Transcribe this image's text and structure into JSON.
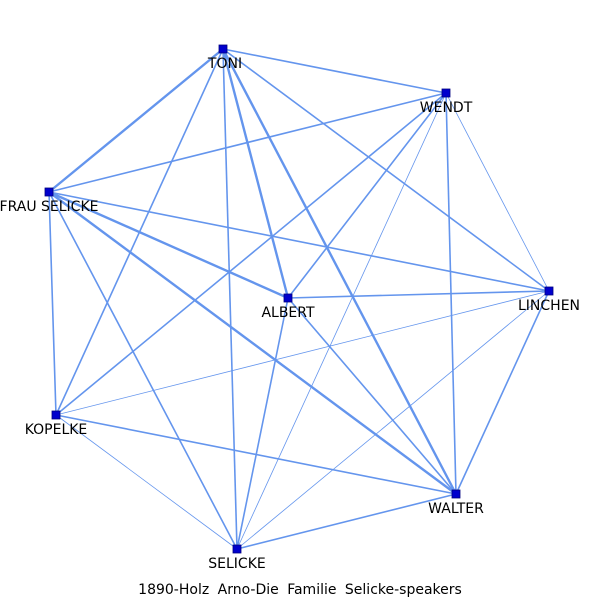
{
  "caption": "1890-Holz Arno-Die Familie Selicke-speakers",
  "colors": {
    "edge": "#6495ED",
    "node": "#0000CD"
  },
  "nodes": [
    {
      "id": "TONI",
      "label": "TONI"
    },
    {
      "id": "WENDT",
      "label": "WENDT"
    },
    {
      "id": "FRAU_SELICKE",
      "label": "FRAU SELICKE"
    },
    {
      "id": "ALBERT",
      "label": "ALBERT"
    },
    {
      "id": "LINCHEN",
      "label": "LINCHEN"
    },
    {
      "id": "KOPELKE",
      "label": "KOPELKE"
    },
    {
      "id": "WALTER",
      "label": "WALTER"
    },
    {
      "id": "SELICKE",
      "label": "SELICKE"
    }
  ],
  "edges": [
    {
      "source": "TONI",
      "target": "WENDT",
      "weight": 2
    },
    {
      "source": "TONI",
      "target": "FRAU_SELICKE",
      "weight": 3
    },
    {
      "source": "TONI",
      "target": "ALBERT",
      "weight": 3
    },
    {
      "source": "TONI",
      "target": "LINCHEN",
      "weight": 2
    },
    {
      "source": "TONI",
      "target": "KOPELKE",
      "weight": 2
    },
    {
      "source": "TONI",
      "target": "WALTER",
      "weight": 3
    },
    {
      "source": "TONI",
      "target": "SELICKE",
      "weight": 2
    },
    {
      "source": "WENDT",
      "target": "FRAU_SELICKE",
      "weight": 2
    },
    {
      "source": "WENDT",
      "target": "ALBERT",
      "weight": 2
    },
    {
      "source": "WENDT",
      "target": "LINCHEN",
      "weight": 1
    },
    {
      "source": "WENDT",
      "target": "KOPELKE",
      "weight": 2
    },
    {
      "source": "WENDT",
      "target": "WALTER",
      "weight": 2
    },
    {
      "source": "WENDT",
      "target": "SELICKE",
      "weight": 1
    },
    {
      "source": "FRAU_SELICKE",
      "target": "ALBERT",
      "weight": 3
    },
    {
      "source": "FRAU_SELICKE",
      "target": "LINCHEN",
      "weight": 2
    },
    {
      "source": "FRAU_SELICKE",
      "target": "KOPELKE",
      "weight": 2
    },
    {
      "source": "FRAU_SELICKE",
      "target": "WALTER",
      "weight": 3
    },
    {
      "source": "FRAU_SELICKE",
      "target": "SELICKE",
      "weight": 2
    },
    {
      "source": "ALBERT",
      "target": "LINCHEN",
      "weight": 2
    },
    {
      "source": "ALBERT",
      "target": "WALTER",
      "weight": 2
    },
    {
      "source": "ALBERT",
      "target": "SELICKE",
      "weight": 2
    },
    {
      "source": "LINCHEN",
      "target": "KOPELKE",
      "weight": 1
    },
    {
      "source": "LINCHEN",
      "target": "WALTER",
      "weight": 2
    },
    {
      "source": "LINCHEN",
      "target": "SELICKE",
      "weight": 1
    },
    {
      "source": "KOPELKE",
      "target": "WALTER",
      "weight": 2
    },
    {
      "source": "KOPELKE",
      "target": "SELICKE",
      "weight": 1
    },
    {
      "source": "WALTER",
      "target": "SELICKE",
      "weight": 2
    }
  ]
}
